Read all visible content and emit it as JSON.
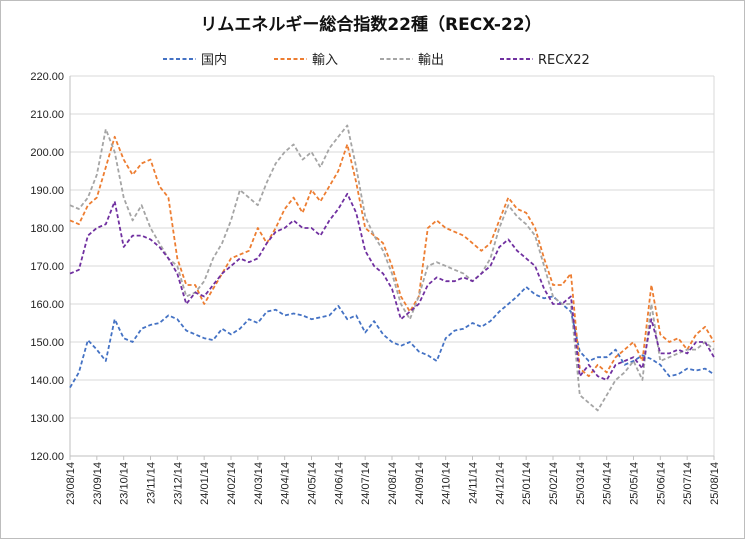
{
  "chart_data": {
    "type": "line",
    "title": "リムエネルギー総合指数22種（RECX-22）",
    "xlabel": "",
    "ylabel": "",
    "ylim": [
      120,
      220
    ],
    "y_ticks": [
      "120.00",
      "130.00",
      "140.00",
      "150.00",
      "160.00",
      "170.00",
      "180.00",
      "190.00",
      "200.00",
      "210.00",
      "220.00"
    ],
    "x_ticks": [
      "23/08/14",
      "23/09/14",
      "23/10/14",
      "23/11/14",
      "23/12/14",
      "24/01/14",
      "24/02/14",
      "24/03/14",
      "24/04/14",
      "24/05/14",
      "24/06/14",
      "24/07/14",
      "24/08/14",
      "24/09/14",
      "24/10/14",
      "24/11/14",
      "24/12/14",
      "25/01/14",
      "25/02/14",
      "25/03/14",
      "25/04/14",
      "25/05/14",
      "25/06/14",
      "25/07/14",
      "25/08/14"
    ],
    "grid": true,
    "legend_position": "top",
    "series": [
      {
        "name": "国内",
        "color": "#4472c4",
        "values": [
          138.0,
          142.0,
          150.5,
          148.0,
          145.0,
          156.0,
          151.0,
          150.0,
          153.5,
          154.5,
          155.0,
          157.0,
          156.0,
          153.0,
          152.0,
          151.0,
          150.5,
          153.5,
          152.0,
          153.5,
          156.0,
          155.0,
          158.0,
          158.5,
          157.0,
          157.5,
          157.0,
          156.0,
          156.5,
          157.0,
          159.5,
          156.0,
          157.0,
          152.5,
          155.5,
          152.0,
          150.0,
          149.0,
          150.0,
          147.5,
          146.5,
          145.0,
          151.0,
          153.0,
          153.5,
          155.0,
          154.0,
          155.5,
          158.0,
          160.0,
          162.0,
          164.5,
          162.5,
          161.5,
          162.0,
          160.0,
          158.0,
          147.5,
          145.0,
          146.0,
          146.0,
          148.0,
          144.0,
          145.0,
          146.5,
          145.5,
          144.0,
          141.0,
          141.5,
          143.0,
          142.5,
          143.0,
          141.5
        ]
      },
      {
        "name": "輸入",
        "color": "#ed7d31",
        "values": [
          182.0,
          181.0,
          186.0,
          188.0,
          196.0,
          204.0,
          198.0,
          194.0,
          197.0,
          198.0,
          191.0,
          188.0,
          172.0,
          165.0,
          165.0,
          160.0,
          164.0,
          168.0,
          172.0,
          173.0,
          174.0,
          180.0,
          176.0,
          180.0,
          185.0,
          188.0,
          184.0,
          190.0,
          187.0,
          191.0,
          195.0,
          202.0,
          192.0,
          180.0,
          178.0,
          176.0,
          170.0,
          162.0,
          158.0,
          162.0,
          180.0,
          182.0,
          180.0,
          179.0,
          178.0,
          176.0,
          174.0,
          176.0,
          182.0,
          188.0,
          185.0,
          184.0,
          180.0,
          172.0,
          165.0,
          165.0,
          168.0,
          143.0,
          141.0,
          144.0,
          142.0,
          146.0,
          148.0,
          150.0,
          145.0,
          165.0,
          152.0,
          150.0,
          151.0,
          148.0,
          152.0,
          154.0,
          150.0
        ]
      },
      {
        "name": "輸出",
        "color": "#a5a5a5",
        "values": [
          186.0,
          185.0,
          188.0,
          194.0,
          206.0,
          200.0,
          188.0,
          182.0,
          186.0,
          180.0,
          176.0,
          172.0,
          170.0,
          162.0,
          163.0,
          166.0,
          172.0,
          176.0,
          182.0,
          190.0,
          188.0,
          186.0,
          192.0,
          197.0,
          200.0,
          202.0,
          198.0,
          200.0,
          196.0,
          201.0,
          204.0,
          207.0,
          196.0,
          183.0,
          178.0,
          174.0,
          168.0,
          160.0,
          156.0,
          162.0,
          170.0,
          171.0,
          170.0,
          169.0,
          168.0,
          166.0,
          168.0,
          172.0,
          180.0,
          186.0,
          183.0,
          181.0,
          178.0,
          170.0,
          162.0,
          160.0,
          160.0,
          136.0,
          134.0,
          132.0,
          136.0,
          140.0,
          142.0,
          145.0,
          140.0,
          160.0,
          145.0,
          146.0,
          147.0,
          148.0,
          148.0,
          150.0,
          148.0
        ]
      },
      {
        "name": "RECX22",
        "color": "#7030a0",
        "values": [
          168.0,
          169.0,
          178.0,
          180.0,
          181.0,
          187.0,
          175.0,
          178.0,
          178.0,
          177.0,
          175.0,
          172.0,
          168.0,
          160.0,
          163.0,
          162.0,
          165.0,
          168.0,
          170.0,
          172.0,
          171.0,
          172.0,
          176.0,
          179.0,
          180.0,
          182.0,
          180.0,
          180.0,
          178.0,
          182.0,
          185.0,
          189.0,
          184.0,
          174.0,
          170.0,
          168.0,
          164.0,
          156.0,
          158.0,
          160.0,
          165.0,
          167.0,
          166.0,
          166.0,
          167.0,
          166.0,
          168.0,
          170.0,
          175.0,
          177.0,
          174.0,
          172.0,
          170.0,
          164.0,
          160.0,
          160.0,
          162.0,
          141.0,
          144.0,
          141.0,
          140.0,
          144.0,
          145.0,
          146.0,
          143.0,
          156.0,
          147.0,
          147.0,
          148.0,
          147.0,
          150.0,
          150.0,
          146.0
        ]
      }
    ]
  }
}
